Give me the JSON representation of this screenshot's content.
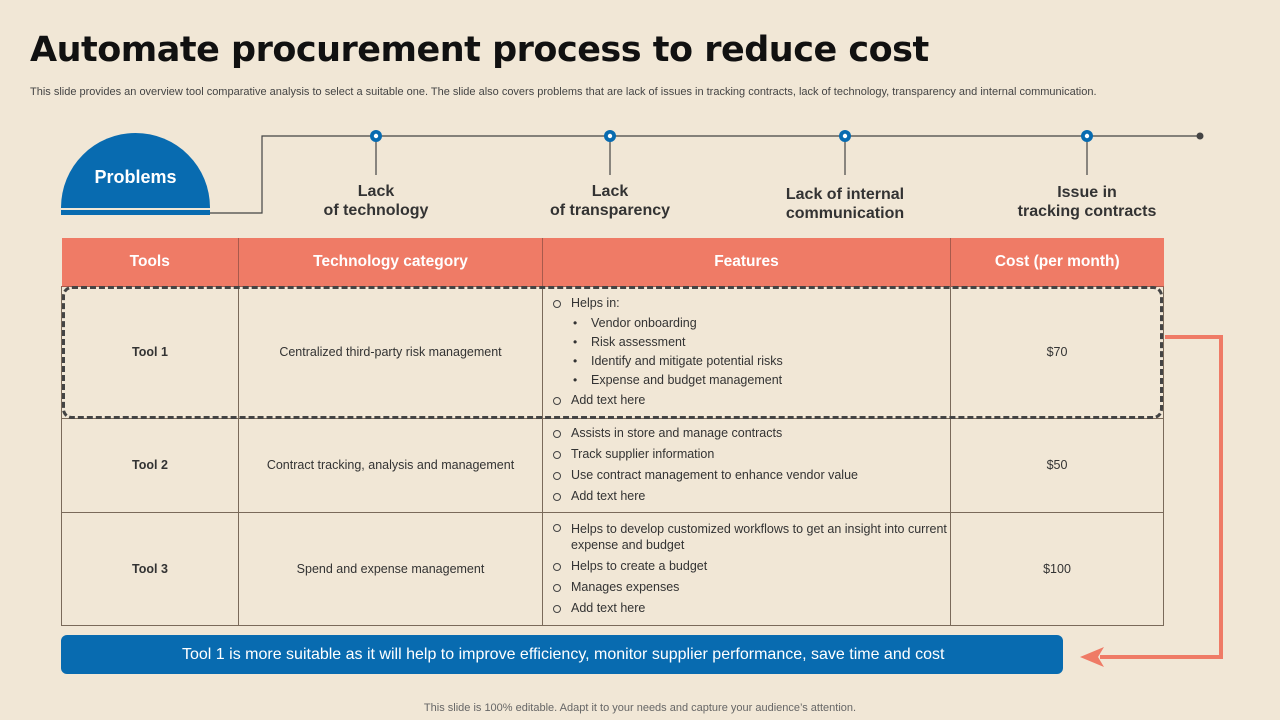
{
  "title": "Automate procurement process to reduce cost",
  "subtitle": "This slide provides an overview tool comparative analysis to select a suitable one. The slide also covers problems that are lack of issues in tracking contracts, lack of technology, transparency and internal communication.",
  "problems_label": "Problems",
  "problems": [
    {
      "line1": "Lack",
      "line2": "of technology"
    },
    {
      "line1": "Lack",
      "line2": "of transparency"
    },
    {
      "line1": "Lack of internal",
      "line2": "communication"
    },
    {
      "line1": "Issue in",
      "line2": "tracking contracts"
    }
  ],
  "table": {
    "headers": [
      "Tools",
      "Technology category",
      "Features",
      "Cost (per month)"
    ],
    "rows": [
      {
        "tool": "Tool 1",
        "category": "Centralized third-party risk management",
        "features_intro": "Helps in:",
        "sub_features": [
          "Vendor onboarding",
          "Risk assessment",
          "Identify and mitigate potential risks",
          "Expense and budget management"
        ],
        "features": [
          "Add text here"
        ],
        "cost": "$70"
      },
      {
        "tool": "Tool 2",
        "category": "Contract tracking, analysis and management",
        "features": [
          "Assists in store and manage contracts",
          "Track supplier information",
          "Use contract management to enhance vendor value",
          "Add text here"
        ],
        "cost": "$50"
      },
      {
        "tool": "Tool 3",
        "category": "Spend and expense management",
        "features": [
          "Helps to develop customized workflows to get an insight into current expense and budget",
          "Helps to create a budget",
          "Manages expenses",
          "Add text here"
        ],
        "cost": "$100"
      }
    ]
  },
  "conclusion": "Tool 1 is more suitable as it will help to improve efficiency, monitor supplier performance, save time and cost",
  "footer": "This slide is 100% editable. Adapt it to your needs and capture your audience’s attention.",
  "colors": {
    "blue": "#086bb0",
    "coral": "#ef7b66",
    "background": "#f1e7d6"
  }
}
